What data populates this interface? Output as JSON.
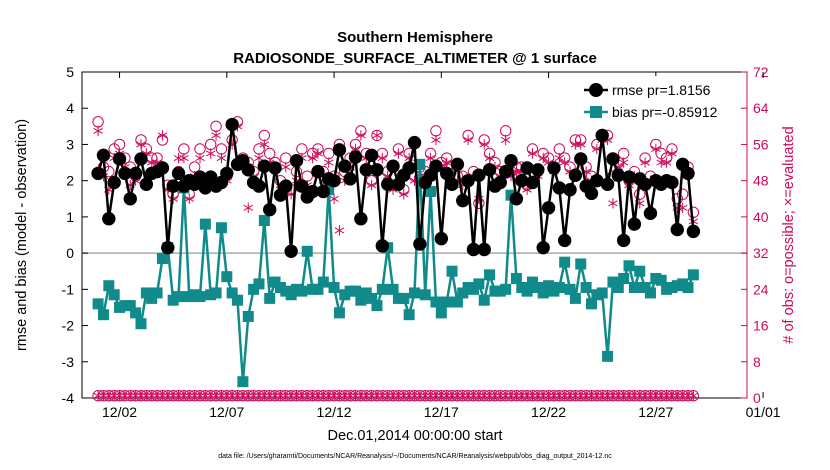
{
  "title_line1": "Southern Hemisphere",
  "title_line2": "RADIOSONDE_SURFACE_ALTIMETER @ 1 surface",
  "footer": "data file: /Users/gharamti/Documents/NCAR/Reanalysis/~/Documents/NCAR/Reanalysis/webpub/obs_diag_output_2014-12.nc",
  "colors": {
    "rmse": "#000000",
    "bias": "#108a8a",
    "nobs": "#cc0a5c",
    "zero_line": "#aaaaaa",
    "frame": "#000000"
  },
  "chart_data": {
    "type": "line",
    "xlabel": "Dec.01,2014 00:00:00 start",
    "ylabel": "rmse and bias (model - observation)",
    "y2label": "# of obs: o=possible; ×=evaluated",
    "xlim": [
      -0.75,
      30.25
    ],
    "ylim": [
      -4,
      5
    ],
    "y2lim": [
      0,
      72
    ],
    "xticks": [
      1,
      6,
      11,
      16,
      21,
      26,
      31
    ],
    "xticklabels": [
      "12/02",
      "12/07",
      "12/12",
      "12/17",
      "12/22",
      "12/27",
      "01/01"
    ],
    "yticks": [
      -4,
      -3,
      -2,
      -1,
      0,
      1,
      2,
      3,
      4,
      5
    ],
    "y2ticks": [
      0,
      8,
      16,
      24,
      32,
      40,
      48,
      56,
      64,
      72
    ],
    "legend_position": "top-right",
    "step_days": 0.25,
    "series": [
      {
        "name": "rmse",
        "label": "rmse pr=1.8156",
        "axis": "left",
        "marker": "filled-circle",
        "values": [
          2.2,
          2.7,
          0.95,
          1.95,
          2.6,
          2.2,
          1.5,
          2.2,
          2.6,
          1.9,
          2.2,
          2.25,
          2.35,
          0.15,
          1.85,
          2.2,
          1.85,
          2.0,
          1.9,
          2.1,
          1.8,
          2.1,
          1.85,
          1.95,
          2.2,
          3.55,
          2.45,
          2.55,
          2.3,
          1.95,
          1.85,
          2.4,
          1.2,
          2.35,
          1.6,
          1.85,
          0.05,
          2.55,
          1.85,
          1.55,
          1.7,
          2.25,
          1.7,
          2.05,
          2.0,
          2.85,
          2.4,
          2.05,
          2.65,
          0.95,
          2.3,
          2.7,
          2.3,
          0.2,
          1.9,
          2.4,
          1.9,
          2.15,
          2.35,
          3.05,
          0.25,
          1.95,
          2.15,
          2.4,
          0.4,
          2.2,
          1.9,
          2.45,
          1.45,
          2.0,
          0.1,
          2.15,
          0.1,
          2.3,
          1.85,
          1.95,
          2.25,
          2.55,
          1.5,
          2.0,
          2.35,
          1.95,
          2.3,
          0.15,
          1.25,
          2.35,
          1.8,
          0.35,
          1.75,
          2.15,
          2.6,
          1.85,
          1.65,
          2.0,
          3.25,
          1.9,
          2.6,
          2.15,
          0.35,
          2.1,
          0.8,
          2.05,
          1.9,
          1.1,
          2.0,
          1.9,
          2.0,
          1.95,
          0.65,
          2.45,
          2.2,
          0.6
        ]
      },
      {
        "name": "bias",
        "label": "bias pr=-0.85912",
        "axis": "left",
        "marker": "filled-square",
        "values": [
          -1.4,
          -1.7,
          -0.9,
          -1.15,
          -1.5,
          -1.45,
          -1.45,
          -1.65,
          -1.95,
          -1.1,
          -1.25,
          -1.1,
          -0.15,
          0.15,
          -1.3,
          -1.2,
          1.8,
          -1.2,
          -1.15,
          -1.2,
          0.8,
          -1.15,
          -1.1,
          0.7,
          -0.65,
          -1.1,
          -1.3,
          -3.55,
          -1.75,
          -1.0,
          -0.85,
          0.9,
          -1.25,
          -0.8,
          -0.95,
          -1.05,
          -1.15,
          -1.0,
          -1.05,
          0.05,
          -1.0,
          -1.0,
          -0.8,
          1.75,
          -0.95,
          -1.65,
          -1.15,
          -1.05,
          -1.05,
          -1.3,
          -1.1,
          -1.25,
          -1.45,
          -1.0,
          0.15,
          -1.0,
          -1.25,
          -1.25,
          -1.7,
          -1.1,
          2.45,
          -1.15,
          1.7,
          -1.35,
          -1.65,
          -1.35,
          -0.5,
          -1.35,
          -1.1,
          -0.95,
          -1.0,
          -0.85,
          -1.3,
          -0.6,
          -1.05,
          -1.05,
          -1.0,
          1.6,
          -0.7,
          -0.95,
          -1.05,
          -0.8,
          -0.95,
          -1.1,
          -0.9,
          -1.05,
          -0.95,
          -0.25,
          -1.0,
          -1.25,
          -0.3,
          -0.95,
          -1.4,
          -1.15,
          -1.1,
          -2.85,
          -0.8,
          -0.95,
          -0.7,
          -0.35,
          -0.95,
          -0.5,
          -0.95,
          -1.1,
          -0.7,
          -0.75,
          -1.0,
          -0.95,
          -0.9,
          -0.85,
          -0.95,
          -0.6
        ]
      },
      {
        "name": "possible",
        "label": "o=possible",
        "axis": "right",
        "marker": "open-circle",
        "values": [
          61,
          51,
          50,
          55,
          56,
          53,
          51,
          49,
          57,
          55,
          53,
          53,
          57,
          47,
          45,
          50,
          55,
          45,
          51,
          55,
          48,
          56,
          60,
          55,
          49,
          57,
          61,
          53,
          52,
          50,
          55,
          58,
          54,
          52,
          48,
          53,
          46,
          50,
          55,
          49,
          54,
          55,
          50,
          54,
          49,
          56,
          50,
          53,
          56,
          59,
          54,
          48,
          58,
          54,
          50,
          47,
          55,
          46,
          54,
          49,
          51,
          50,
          54,
          59,
          52,
          53,
          51,
          49,
          49,
          58,
          50,
          43,
          57,
          54,
          52,
          50,
          59,
          50,
          51,
          51,
          47,
          55,
          50,
          54,
          53,
          51,
          55,
          53,
          51,
          57,
          57,
          51,
          49,
          56,
          58,
          58,
          49,
          52,
          54,
          48,
          50,
          45,
          53,
          49,
          56,
          54,
          53,
          55,
          44,
          45,
          51,
          41
        ]
      },
      {
        "name": "evaluated",
        "label": "×=evaluated",
        "axis": "right",
        "marker": "asterisk",
        "values": [
          59,
          49,
          46,
          53,
          54,
          51,
          47,
          48,
          56,
          54,
          52,
          52,
          58,
          46,
          44,
          53,
          53,
          44,
          49,
          53,
          47,
          54,
          58,
          53,
          48,
          56,
          60,
          51,
          42,
          49,
          53,
          56,
          52,
          51,
          46,
          51,
          45,
          48,
          53,
          47,
          53,
          54,
          48,
          52,
          44,
          37,
          48,
          51,
          55,
          58,
          53,
          47,
          58,
          53,
          49,
          46,
          54,
          45,
          53,
          48,
          49,
          49,
          53,
          57,
          51,
          52,
          50,
          48,
          47,
          57,
          49,
          44,
          56,
          53,
          51,
          49,
          57,
          49,
          50,
          50,
          46,
          54,
          49,
          53,
          52,
          50,
          53,
          52,
          50,
          56,
          56,
          50,
          48,
          55,
          57,
          57,
          43,
          51,
          52,
          47,
          49,
          43,
          52,
          48,
          55,
          52,
          52,
          54,
          42,
          42,
          49,
          39
        ]
      },
      {
        "name": "possible_level2",
        "axis": "right",
        "marker": "open-circle",
        "values": [
          0.5,
          0.5,
          0.5,
          0.5,
          0.5,
          0.5,
          0.5,
          0.5,
          0.5,
          0.5,
          0.5,
          0.5,
          0.5,
          0.5,
          0.5,
          0.5,
          0.5,
          0.5,
          0.5,
          0.5,
          0.5,
          0.5,
          0.5,
          0.5,
          0.5,
          0.5,
          0.5,
          0.5,
          0.5,
          0.5,
          0.5,
          0.5,
          0.5,
          0.5,
          0.5,
          0.5,
          0.5,
          0.5,
          0.5,
          0.5,
          0.5,
          0.5,
          0.5,
          0.5,
          0.5,
          0.5,
          0.5,
          0.5,
          0.5,
          0.5,
          0.5,
          0.5,
          0.5,
          0.5,
          0.5,
          0.5,
          0.5,
          0.5,
          0.5,
          0.5,
          0.5,
          0.5,
          0.5,
          0.5,
          0.5,
          0.5,
          0.5,
          0.5,
          0.5,
          0.5,
          0.5,
          0.5,
          0.5,
          0.5,
          0.5,
          0.5,
          0.5,
          0.5,
          0.5,
          0.5,
          0.5,
          0.5,
          0.5,
          0.5,
          0.5,
          0.5,
          0.5,
          0.5,
          0.5,
          0.5,
          0.5,
          0.5,
          0.5,
          0.5,
          0.5,
          0.5,
          0.5,
          0.5,
          0.5,
          0.5,
          0.5,
          0.5,
          0.5,
          0.5,
          0.5,
          0.5,
          0.5,
          0.5,
          0.5,
          0.5,
          0.5,
          0.5
        ]
      },
      {
        "name": "evaluated_level2",
        "axis": "right",
        "marker": "asterisk",
        "values": [
          0.5,
          0.5,
          0.5,
          0.5,
          0.5,
          0.5,
          0.5,
          0.5,
          0.5,
          0.5,
          0.5,
          0.5,
          0.5,
          0.5,
          0.5,
          0.5,
          0.5,
          0.5,
          0.5,
          0.5,
          0.5,
          0.5,
          0.5,
          0.5,
          0.5,
          0.5,
          0.5,
          0.5,
          0.5,
          0.5,
          0.5,
          0.5,
          0.5,
          0.5,
          0.5,
          0.5,
          0.5,
          0.5,
          0.5,
          0.5,
          0.5,
          0.5,
          0.5,
          0.5,
          0.5,
          0.5,
          0.5,
          0.5,
          0.5,
          0.5,
          0.5,
          0.5,
          0.5,
          0.5,
          0.5,
          0.5,
          0.5,
          0.5,
          0.5,
          0.5,
          0.5,
          0.5,
          0.5,
          0.5,
          0.5,
          0.5,
          0.5,
          0.5,
          0.5,
          0.5,
          0.5,
          0.5,
          0.5,
          0.5,
          0.5,
          0.5,
          0.5,
          0.5,
          0.5,
          0.5,
          0.5,
          0.5,
          0.5,
          0.5,
          0.5,
          0.5,
          0.5,
          0.5,
          0.5,
          0.5,
          0.5,
          0.5,
          0.5,
          0.5,
          0.5,
          0.5,
          0.5,
          0.5,
          0.5,
          0.5,
          0.5,
          0.5,
          0.5,
          0.5,
          0.5,
          0.5,
          0.5,
          0.5,
          0.5,
          0.5,
          0.5,
          0.5
        ]
      }
    ]
  }
}
